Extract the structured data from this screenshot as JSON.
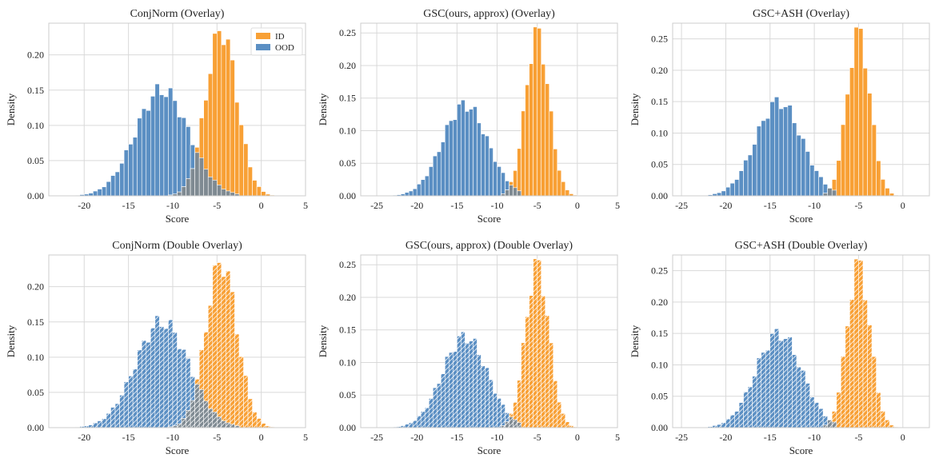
{
  "colors": {
    "id": "#f8a035",
    "ood": "#5b8fc3",
    "overlap": "#7f8a92",
    "grid": "#d9d9d9",
    "hatch": "#ffffff"
  },
  "chart_data": [
    {
      "type": "histogram",
      "title": "ConjNorm (Overlay)",
      "xlabel": "Score",
      "ylabel": "Density",
      "xlim": [
        -24,
        5
      ],
      "ylim": [
        0,
        0.245
      ],
      "xticks": [
        -20,
        -15,
        -10,
        -5,
        0,
        5
      ],
      "yticks": [
        0.0,
        0.05,
        0.1,
        0.15,
        0.2
      ],
      "yticklabels": [
        "0.00",
        "0.05",
        "0.10",
        "0.15",
        "0.20"
      ],
      "grid": true,
      "hatched": false,
      "legend": {
        "placement": "top-right",
        "entries": [
          "ID",
          "OOD"
        ]
      },
      "series": [
        {
          "name": "ID",
          "mean": -4.5,
          "sd": 1.75,
          "peak": 0.235,
          "range": [
            -10.5,
            1.5
          ]
        },
        {
          "name": "OOD",
          "mean": -11.2,
          "sd": 3.0,
          "peak": 0.15,
          "range": [
            -21.5,
            -2.5
          ]
        }
      ]
    },
    {
      "type": "histogram",
      "title": "GSC(ours, approx) (Overlay)",
      "xlabel": "Score",
      "ylabel": "Density",
      "xlim": [
        -27,
        5
      ],
      "ylim": [
        0,
        0.265
      ],
      "xticks": [
        -25,
        -20,
        -15,
        -10,
        -5,
        0,
        5
      ],
      "yticks": [
        0.0,
        0.05,
        0.1,
        0.15,
        0.2,
        0.25
      ],
      "yticklabels": [
        "0.00",
        "0.05",
        "0.10",
        "0.15",
        "0.20",
        "0.25"
      ],
      "grid": true,
      "hatched": false,
      "legend": null,
      "series": [
        {
          "name": "ID",
          "mean": -5.0,
          "sd": 1.45,
          "peak": 0.25,
          "range": [
            -9.5,
            0.0
          ]
        },
        {
          "name": "OOD",
          "mean": -14.0,
          "sd": 2.8,
          "peak": 0.14,
          "range": [
            -24.0,
            -7.0
          ]
        }
      ]
    },
    {
      "type": "histogram",
      "title": "GSC+ASH (Overlay)",
      "xlabel": "Score",
      "ylabel": "Density",
      "xlim": [
        -26,
        3
      ],
      "ylim": [
        0,
        0.275
      ],
      "xticks": [
        -25,
        -20,
        -15,
        -10,
        -5,
        0
      ],
      "yticks": [
        0.0,
        0.05,
        0.1,
        0.15,
        0.2,
        0.25
      ],
      "yticklabels": [
        "0.00",
        "0.05",
        "0.10",
        "0.15",
        "0.20",
        "0.25"
      ],
      "grid": true,
      "hatched": false,
      "legend": null,
      "series": [
        {
          "name": "ID",
          "mean": -5.0,
          "sd": 1.3,
          "peak": 0.26,
          "range": [
            -9.0,
            -0.5
          ]
        },
        {
          "name": "OOD",
          "mean": -14.0,
          "sd": 2.6,
          "peak": 0.15,
          "range": [
            -23.0,
            -7.5
          ]
        }
      ]
    },
    {
      "type": "histogram",
      "title": "ConjNorm (Double Overlay)",
      "xlabel": "Score",
      "ylabel": "Density",
      "xlim": [
        -24,
        5
      ],
      "ylim": [
        0,
        0.245
      ],
      "xticks": [
        -20,
        -15,
        -10,
        -5,
        0,
        5
      ],
      "yticks": [
        0.0,
        0.05,
        0.1,
        0.15,
        0.2
      ],
      "yticklabels": [
        "0.00",
        "0.05",
        "0.10",
        "0.15",
        "0.20"
      ],
      "grid": true,
      "hatched": true,
      "legend": null,
      "series": [
        {
          "name": "ID",
          "mean": -4.5,
          "sd": 1.75,
          "peak": 0.235,
          "range": [
            -10.5,
            1.5
          ]
        },
        {
          "name": "OOD",
          "mean": -11.2,
          "sd": 3.0,
          "peak": 0.15,
          "range": [
            -21.5,
            -2.5
          ]
        }
      ]
    },
    {
      "type": "histogram",
      "title": "GSC(ours, approx) (Double Overlay)",
      "xlabel": "Score",
      "ylabel": "Density",
      "xlim": [
        -27,
        5
      ],
      "ylim": [
        0,
        0.265
      ],
      "xticks": [
        -25,
        -20,
        -15,
        -10,
        -5,
        0,
        5
      ],
      "yticks": [
        0.0,
        0.05,
        0.1,
        0.15,
        0.2,
        0.25
      ],
      "yticklabels": [
        "0.00",
        "0.05",
        "0.10",
        "0.15",
        "0.20",
        "0.25"
      ],
      "grid": true,
      "hatched": true,
      "legend": null,
      "series": [
        {
          "name": "ID",
          "mean": -5.0,
          "sd": 1.45,
          "peak": 0.25,
          "range": [
            -9.5,
            0.0
          ]
        },
        {
          "name": "OOD",
          "mean": -14.0,
          "sd": 2.8,
          "peak": 0.14,
          "range": [
            -24.0,
            -7.0
          ]
        }
      ]
    },
    {
      "type": "histogram",
      "title": "GSC+ASH (Double Overlay)",
      "xlabel": "Score",
      "ylabel": "Density",
      "xlim": [
        -26,
        3
      ],
      "ylim": [
        0,
        0.275
      ],
      "xticks": [
        -25,
        -20,
        -15,
        -10,
        -5,
        0
      ],
      "yticks": [
        0.0,
        0.05,
        0.1,
        0.15,
        0.2,
        0.25
      ],
      "yticklabels": [
        "0.00",
        "0.05",
        "0.10",
        "0.15",
        "0.20",
        "0.25"
      ],
      "grid": true,
      "hatched": true,
      "legend": null,
      "series": [
        {
          "name": "ID",
          "mean": -5.0,
          "sd": 1.3,
          "peak": 0.26,
          "range": [
            -9.0,
            -0.5
          ]
        },
        {
          "name": "OOD",
          "mean": -14.0,
          "sd": 2.6,
          "peak": 0.15,
          "range": [
            -23.0,
            -7.5
          ]
        }
      ]
    }
  ]
}
